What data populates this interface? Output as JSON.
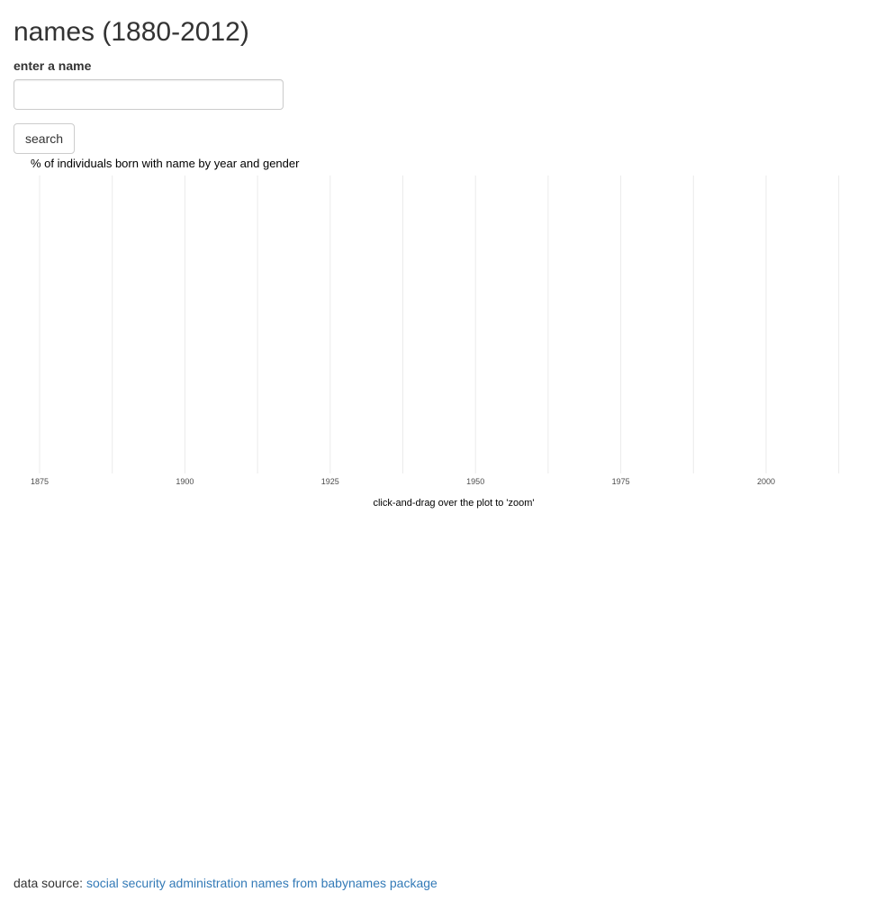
{
  "page": {
    "title": "names (1880-2012)"
  },
  "form": {
    "label": "enter a name",
    "input_value": "",
    "input_placeholder": "",
    "search_label": "search"
  },
  "chart_data": {
    "type": "line",
    "title": "% of individuals born with name by year and gender",
    "xlabel": "",
    "ylabel": "",
    "xlim": [
      1875,
      2015
    ],
    "x_ticks": [
      1875,
      1900,
      1925,
      1950,
      1975,
      2000
    ],
    "x_gridlines": [
      1875,
      1887.5,
      1900,
      1912.5,
      1925,
      1937.5,
      1950,
      1962.5,
      1975,
      1987.5,
      2000,
      2012.5
    ],
    "grid": true,
    "series": [],
    "annotation": "click-and-drag over the plot to 'zoom'"
  },
  "footer": {
    "prefix": "data source:",
    "link_text": "social security administration names from babynames package"
  },
  "colors": {
    "link": "#337ab7",
    "grid": "#ebebeb",
    "text": "#333333"
  }
}
